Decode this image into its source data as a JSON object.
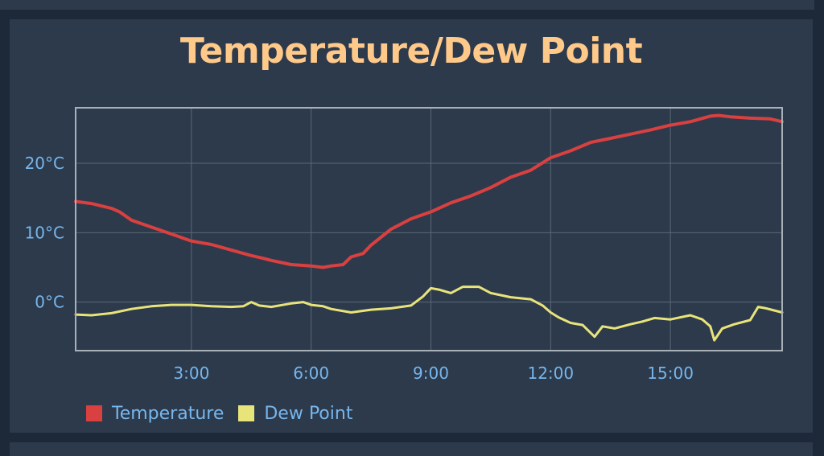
{
  "chart_data": {
    "type": "line",
    "title": "Temperature/Dew Point",
    "xlabel": "",
    "ylabel": "",
    "x_unit": "hours",
    "xlim": [
      0.1,
      17.8
    ],
    "ylim": [
      -7,
      28
    ],
    "x_ticks": [
      {
        "value": 3,
        "label": "3:00"
      },
      {
        "value": 6,
        "label": "6:00"
      },
      {
        "value": 9,
        "label": "9:00"
      },
      {
        "value": 12,
        "label": "12:00"
      },
      {
        "value": 15,
        "label": "15:00"
      }
    ],
    "y_ticks": [
      {
        "value": 0,
        "label": "0°C"
      },
      {
        "value": 10,
        "label": "10°C"
      },
      {
        "value": 20,
        "label": "20°C"
      }
    ],
    "grid": true,
    "legend_position": "bottom-left",
    "series": [
      {
        "name": "Temperature",
        "color": "#d94040",
        "points": [
          [
            0.1,
            14.5
          ],
          [
            0.5,
            14.2
          ],
          [
            1.0,
            13.5
          ],
          [
            1.2,
            13.0
          ],
          [
            1.5,
            11.8
          ],
          [
            2.0,
            10.8
          ],
          [
            2.5,
            9.8
          ],
          [
            3.0,
            8.8
          ],
          [
            3.5,
            8.3
          ],
          [
            4.0,
            7.5
          ],
          [
            4.5,
            6.7
          ],
          [
            4.8,
            6.3
          ],
          [
            5.0,
            6.0
          ],
          [
            5.5,
            5.4
          ],
          [
            6.0,
            5.2
          ],
          [
            6.3,
            5.0
          ],
          [
            6.5,
            5.2
          ],
          [
            6.8,
            5.4
          ],
          [
            7.0,
            6.5
          ],
          [
            7.3,
            7.0
          ],
          [
            7.5,
            8.2
          ],
          [
            8.0,
            10.5
          ],
          [
            8.5,
            12.0
          ],
          [
            9.0,
            13.0
          ],
          [
            9.5,
            14.3
          ],
          [
            10.0,
            15.3
          ],
          [
            10.5,
            16.5
          ],
          [
            11.0,
            18.0
          ],
          [
            11.5,
            19.0
          ],
          [
            12.0,
            20.8
          ],
          [
            12.5,
            21.8
          ],
          [
            13.0,
            23.0
          ],
          [
            13.5,
            23.6
          ],
          [
            14.0,
            24.2
          ],
          [
            14.5,
            24.8
          ],
          [
            15.0,
            25.5
          ],
          [
            15.5,
            26.0
          ],
          [
            16.0,
            26.8
          ],
          [
            16.2,
            26.9
          ],
          [
            16.5,
            26.7
          ],
          [
            17.0,
            26.5
          ],
          [
            17.5,
            26.4
          ],
          [
            17.8,
            26.0
          ]
        ]
      },
      {
        "name": "Dew Point",
        "color": "#e8e47a",
        "points": [
          [
            0.1,
            -1.8
          ],
          [
            0.5,
            -1.9
          ],
          [
            1.0,
            -1.6
          ],
          [
            1.5,
            -1.0
          ],
          [
            2.0,
            -0.6
          ],
          [
            2.5,
            -0.4
          ],
          [
            3.0,
            -0.4
          ],
          [
            3.5,
            -0.6
          ],
          [
            4.0,
            -0.7
          ],
          [
            4.3,
            -0.6
          ],
          [
            4.5,
            0.0
          ],
          [
            4.7,
            -0.5
          ],
          [
            5.0,
            -0.7
          ],
          [
            5.5,
            -0.2
          ],
          [
            5.8,
            0.0
          ],
          [
            6.0,
            -0.4
          ],
          [
            6.3,
            -0.6
          ],
          [
            6.5,
            -1.0
          ],
          [
            7.0,
            -1.5
          ],
          [
            7.5,
            -1.1
          ],
          [
            8.0,
            -0.9
          ],
          [
            8.5,
            -0.5
          ],
          [
            8.8,
            0.8
          ],
          [
            9.0,
            2.0
          ],
          [
            9.2,
            1.8
          ],
          [
            9.5,
            1.3
          ],
          [
            9.8,
            2.2
          ],
          [
            10.2,
            2.2
          ],
          [
            10.5,
            1.3
          ],
          [
            11.0,
            0.7
          ],
          [
            11.5,
            0.4
          ],
          [
            11.8,
            -0.5
          ],
          [
            12.0,
            -1.5
          ],
          [
            12.2,
            -2.2
          ],
          [
            12.5,
            -3.0
          ],
          [
            12.8,
            -3.3
          ],
          [
            13.1,
            -5.0
          ],
          [
            13.3,
            -3.5
          ],
          [
            13.6,
            -3.8
          ],
          [
            14.0,
            -3.2
          ],
          [
            14.3,
            -2.8
          ],
          [
            14.6,
            -2.3
          ],
          [
            15.0,
            -2.5
          ],
          [
            15.5,
            -1.9
          ],
          [
            15.8,
            -2.5
          ],
          [
            16.0,
            -3.5
          ],
          [
            16.1,
            -5.5
          ],
          [
            16.3,
            -3.8
          ],
          [
            16.6,
            -3.2
          ],
          [
            17.0,
            -2.6
          ],
          [
            17.2,
            -0.7
          ],
          [
            17.4,
            -0.9
          ],
          [
            17.6,
            -1.2
          ],
          [
            17.8,
            -1.5
          ]
        ]
      }
    ]
  }
}
